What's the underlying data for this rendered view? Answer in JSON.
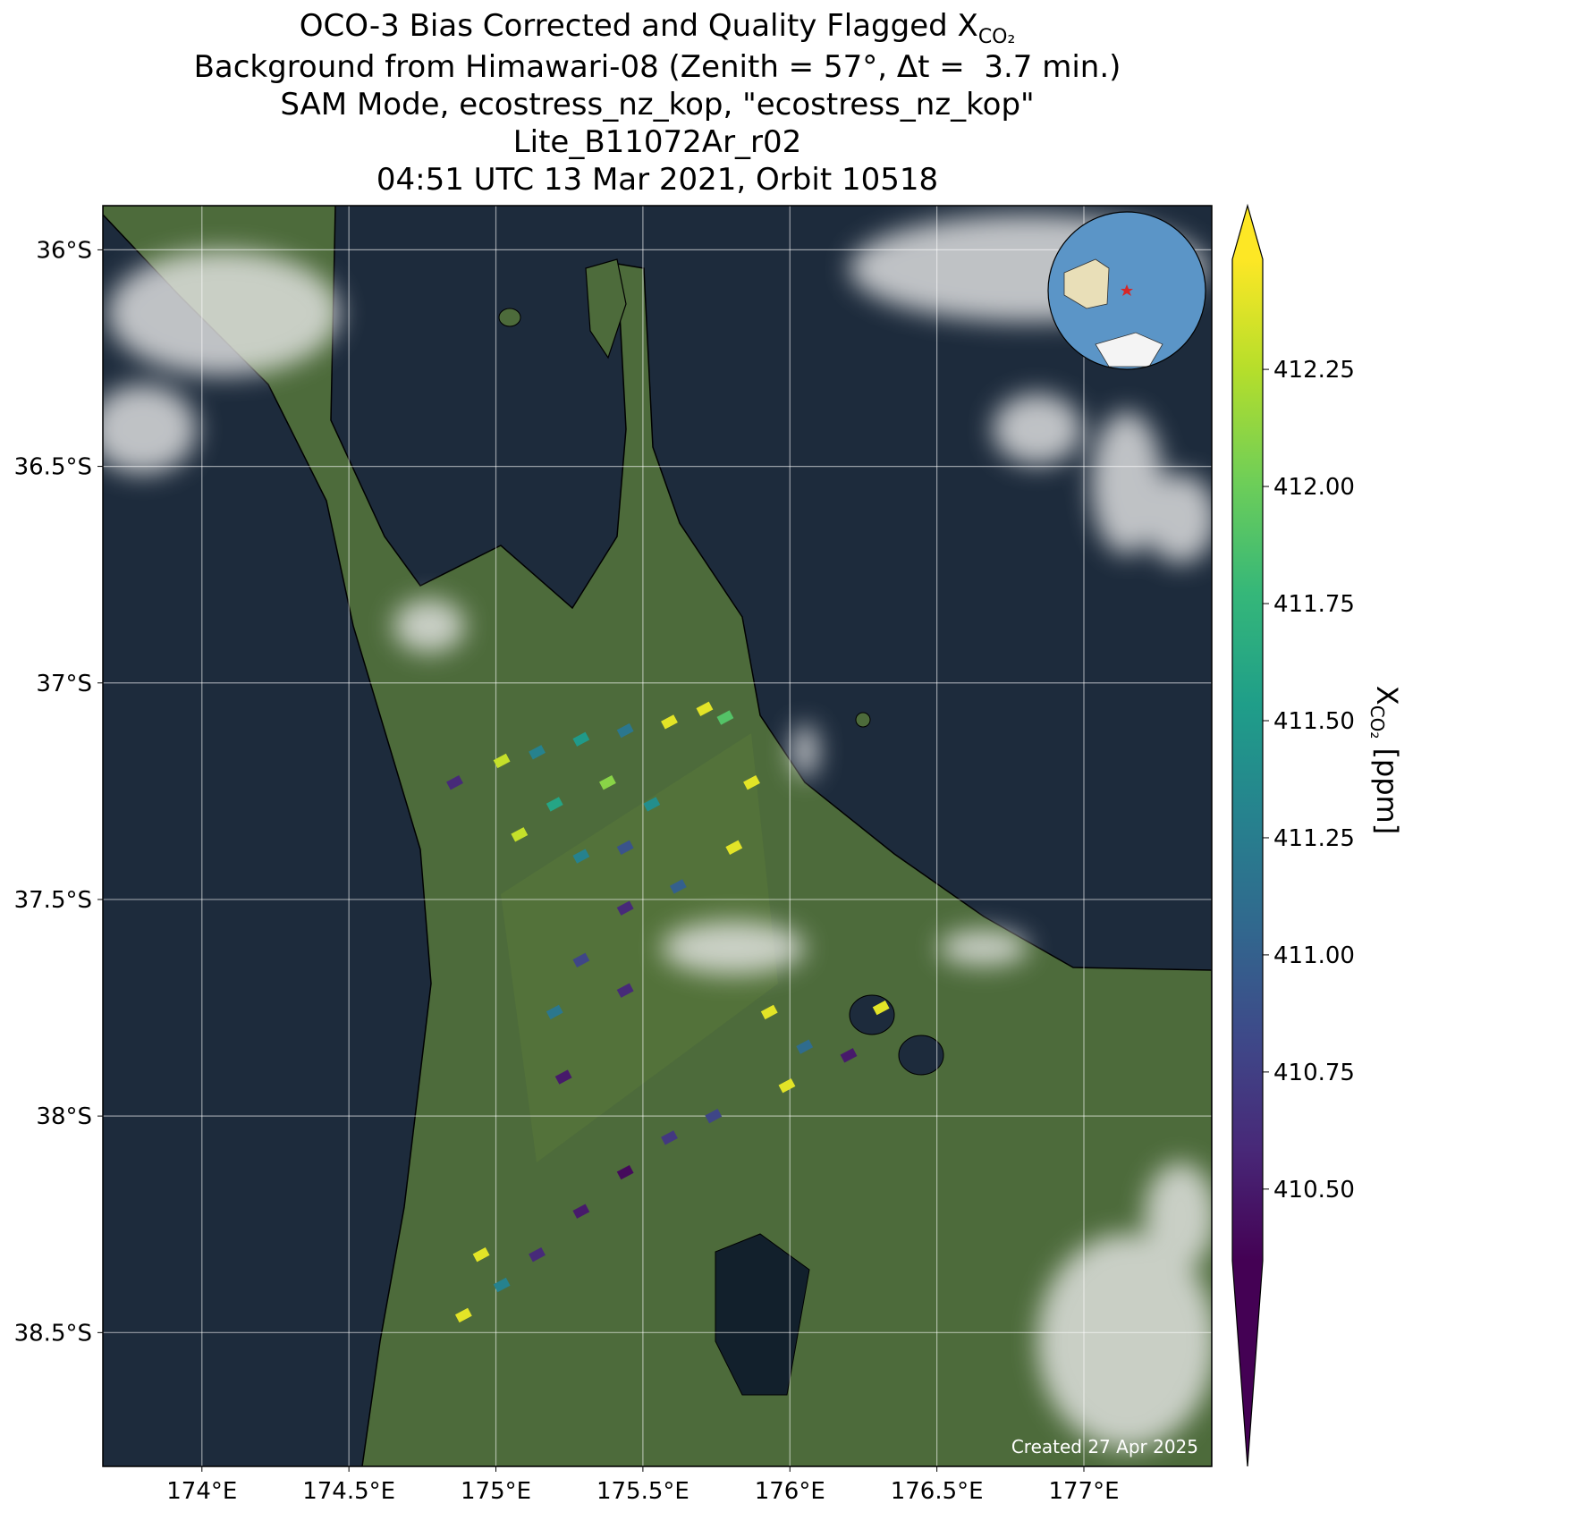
{
  "chart_data": {
    "type": "map",
    "title_prefix": "OCO-3 Bias Corrected and Quality Flagged X",
    "title_subscript": "CO₂",
    "subtitle": [
      "Background from Himawari-08 (Zenith = 57°, Δt =  3.7 min.)",
      "SAM Mode, ecostress_nz_kop, \"ecostress_nz_kop\"",
      "Lite_B11072Ar_r02",
      "04:51 UTC 13 Mar 2021, Orbit 10518"
    ],
    "annotation": "Created 27 Apr 2025",
    "xlim": [
      173.663,
      177.435
    ],
    "ylim": [
      -38.809,
      -35.898
    ],
    "xticks": [
      {
        "value": 174,
        "label": "174°E"
      },
      {
        "value": 174.5,
        "label": "174.5°E"
      },
      {
        "value": 175,
        "label": "175°E"
      },
      {
        "value": 175.5,
        "label": "175.5°E"
      },
      {
        "value": 176,
        "label": "176°E"
      },
      {
        "value": 176.5,
        "label": "176.5°E"
      },
      {
        "value": 177,
        "label": "177°E"
      }
    ],
    "yticks": [
      {
        "value": -36,
        "label": "36°S"
      },
      {
        "value": -36.5,
        "label": "36.5°S"
      },
      {
        "value": -37,
        "label": "37°S"
      },
      {
        "value": -37.5,
        "label": "37.5°S"
      },
      {
        "value": -38,
        "label": "38°S"
      },
      {
        "value": -38.5,
        "label": "38.5°S"
      }
    ],
    "grid": true,
    "colormap": "viridis",
    "clim": [
      410.347,
      412.485
    ],
    "cticks": [
      {
        "value": 410.5,
        "label": "410.50"
      },
      {
        "value": 410.75,
        "label": "410.75"
      },
      {
        "value": 411,
        "label": "411.00"
      },
      {
        "value": 411.25,
        "label": "411.25"
      },
      {
        "value": 411.5,
        "label": "411.50"
      },
      {
        "value": 411.75,
        "label": "411.75"
      },
      {
        "value": 412,
        "label": "412.00"
      },
      {
        "value": 412.25,
        "label": "412.25"
      }
    ],
    "colorbar_label_prefix": "X",
    "colorbar_label_subscript": "CO₂",
    "colorbar_label_suffix": "[ppm]",
    "lon": [
      174.86,
      175.02,
      175.14,
      175.29,
      175.44,
      175.59,
      175.71,
      175.78,
      175.87,
      175.81,
      175.62,
      175.44,
      175.29,
      175.2,
      175.23,
      175.44,
      175.53,
      175.38,
      175.2,
      175.08,
      175.29,
      175.44,
      174.89,
      175.02,
      175.14,
      175.29,
      175.44,
      175.59,
      175.74,
      174.95,
      175.93,
      176.05,
      176.2,
      175.99,
      176.31
    ],
    "lat": [
      -37.23,
      -37.18,
      -37.16,
      -37.13,
      -37.11,
      -37.09,
      -37.06,
      -37.08,
      -37.23,
      -37.38,
      -37.47,
      -37.52,
      -37.64,
      -37.76,
      -37.91,
      -37.71,
      -37.28,
      -37.23,
      -37.28,
      -37.35,
      -37.4,
      -37.38,
      -38.46,
      -38.39,
      -38.32,
      -38.22,
      -38.13,
      -38.05,
      -38.0,
      -38.32,
      -37.76,
      -37.84,
      -37.86,
      -37.93,
      -37.75
    ],
    "values": [
      410.6,
      412.3,
      411.3,
      411.5,
      411.2,
      412.4,
      412.4,
      411.9,
      412.4,
      412.4,
      411.0,
      410.6,
      410.8,
      411.2,
      410.5,
      410.6,
      411.4,
      412.1,
      411.6,
      412.3,
      411.3,
      410.9,
      412.4,
      411.3,
      410.6,
      410.5,
      410.4,
      410.7,
      410.8,
      412.4,
      412.4,
      411.1,
      410.5,
      412.4,
      412.4
    ]
  }
}
